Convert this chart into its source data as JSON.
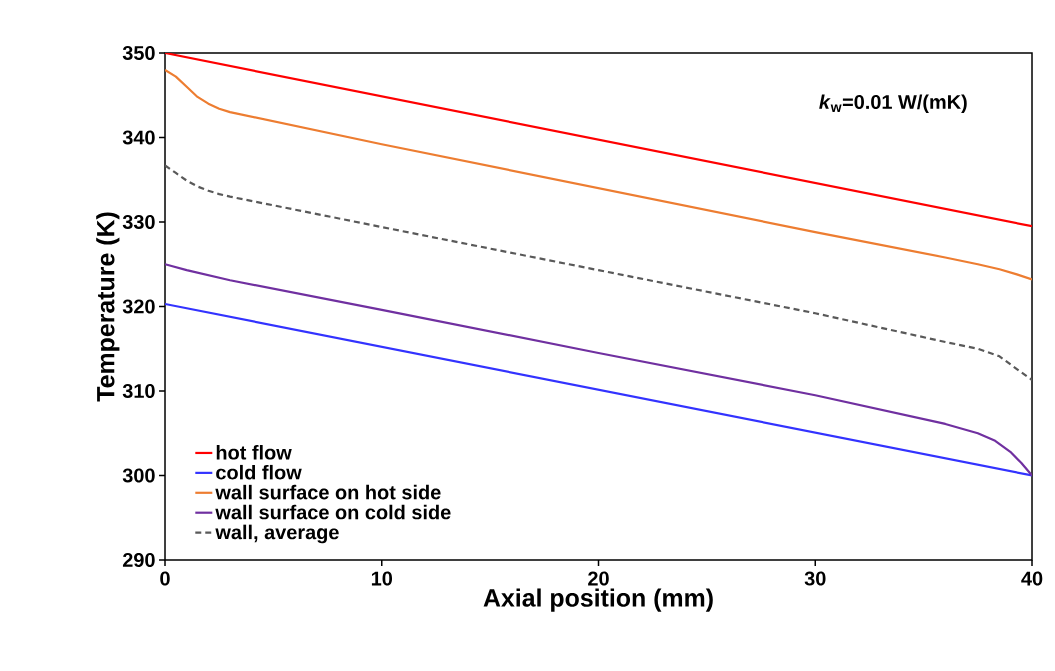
{
  "chart_data": {
    "type": "line",
    "xlabel": "Axial position (mm)",
    "ylabel": "Temperature (K)",
    "xlim": [
      0,
      40
    ],
    "ylim": [
      290,
      350
    ],
    "xticks": [
      0,
      10,
      20,
      30,
      40
    ],
    "yticks": [
      290,
      300,
      310,
      320,
      330,
      340,
      350
    ],
    "grid": false,
    "legend": "bottom left",
    "marker": "none",
    "annotations": [
      "*k*$_{w}$=0.01 W/(mK)"
    ],
    "series": [
      {
        "name": "hot flow",
        "color": "#ff0000",
        "line_style": "solid",
        "x": [
          0,
          40
        ],
        "values": [
          350,
          329.5
        ]
      },
      {
        "name": "cold flow",
        "color": "#3333ff",
        "line_style": "solid",
        "x": [
          0,
          40
        ],
        "values": [
          320.3,
          300
        ]
      },
      {
        "name": "wall surface on hot side",
        "color": "#ed7d31",
        "line_style": "solid",
        "x": [
          0,
          0.5,
          1,
          1.5,
          2,
          2.5,
          3,
          10,
          20,
          30,
          36,
          37.5,
          38.5,
          39.3,
          40
        ],
        "values": [
          348,
          347.2,
          346,
          344.8,
          344,
          343.4,
          343,
          339.2,
          334,
          328.8,
          325.8,
          325,
          324.4,
          323.8,
          323.2
        ]
      },
      {
        "name": "wall surface on cold side",
        "color": "#7030a0",
        "line_style": "solid",
        "x": [
          0,
          1,
          2,
          3,
          10,
          20,
          30,
          36,
          37.5,
          38.3,
          39,
          39.5,
          40
        ],
        "values": [
          325,
          324.3,
          323.7,
          323.1,
          319.6,
          314.5,
          309.5,
          306.1,
          305,
          304.1,
          302.8,
          301.5,
          300
        ]
      },
      {
        "name": "wall, average",
        "color": "#595959",
        "line_style": "dashed",
        "x": [
          0,
          0.5,
          1,
          1.5,
          2,
          2.5,
          3,
          10,
          20,
          30,
          36,
          37.5,
          38.5,
          39.3,
          40
        ],
        "values": [
          336.7,
          335.8,
          334.9,
          334.2,
          333.7,
          333.3,
          333,
          329.4,
          324.3,
          319.2,
          315.8,
          315,
          314.1,
          312.6,
          311.3
        ]
      }
    ]
  }
}
